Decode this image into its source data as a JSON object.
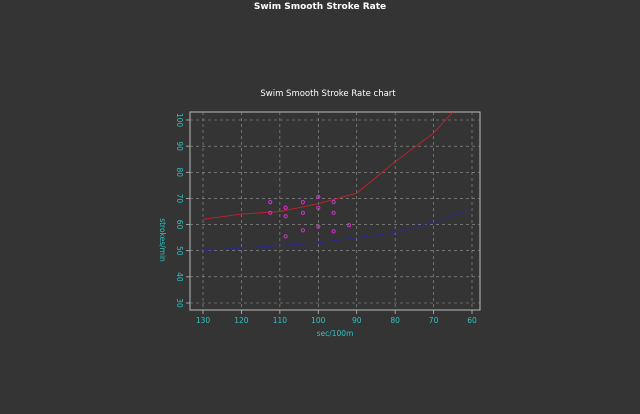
{
  "window": {
    "title": "Swim Smooth Stroke Rate"
  },
  "chart_data": {
    "type": "scatter",
    "title": "Swim Smooth Stroke Rate chart",
    "xlabel": "sec/100m",
    "ylabel": "strokes/min",
    "x_ticks": [
      130,
      120,
      110,
      100,
      90,
      80,
      70,
      60
    ],
    "y_ticks": [
      30,
      40,
      50,
      60,
      70,
      80,
      90,
      100
    ],
    "xlim": [
      130,
      60
    ],
    "ylim": [
      30,
      100
    ],
    "grid": true,
    "series": [
      {
        "kind": "line",
        "color": "#c8202a",
        "points": [
          [
            130,
            62
          ],
          [
            120,
            64
          ],
          [
            110,
            65
          ],
          [
            100,
            68
          ],
          [
            90,
            72
          ],
          [
            80,
            84
          ],
          [
            70,
            95
          ],
          [
            65,
            103
          ]
        ]
      },
      {
        "kind": "line",
        "color": "#2a2a9a",
        "points": [
          [
            130,
            50
          ],
          [
            120,
            51
          ],
          [
            110,
            52
          ],
          [
            100,
            53
          ],
          [
            90,
            55
          ],
          [
            80,
            57
          ],
          [
            70,
            61
          ],
          [
            60,
            66
          ]
        ]
      },
      {
        "kind": "scatter",
        "color": "#cc33cc",
        "points": [
          [
            112.5,
            68.6
          ],
          [
            108.5,
            66.5
          ],
          [
            104,
            68.6
          ],
          [
            100,
            70.6
          ],
          [
            96,
            68.6
          ],
          [
            112.5,
            64.5
          ],
          [
            104,
            64.5
          ],
          [
            100,
            66.4
          ],
          [
            96,
            64.5
          ],
          [
            108.5,
            63.2
          ],
          [
            100,
            59.2
          ],
          [
            104,
            57.8
          ],
          [
            96,
            57.4
          ],
          [
            108.5,
            55.5
          ],
          [
            92,
            59.8
          ]
        ]
      }
    ]
  }
}
